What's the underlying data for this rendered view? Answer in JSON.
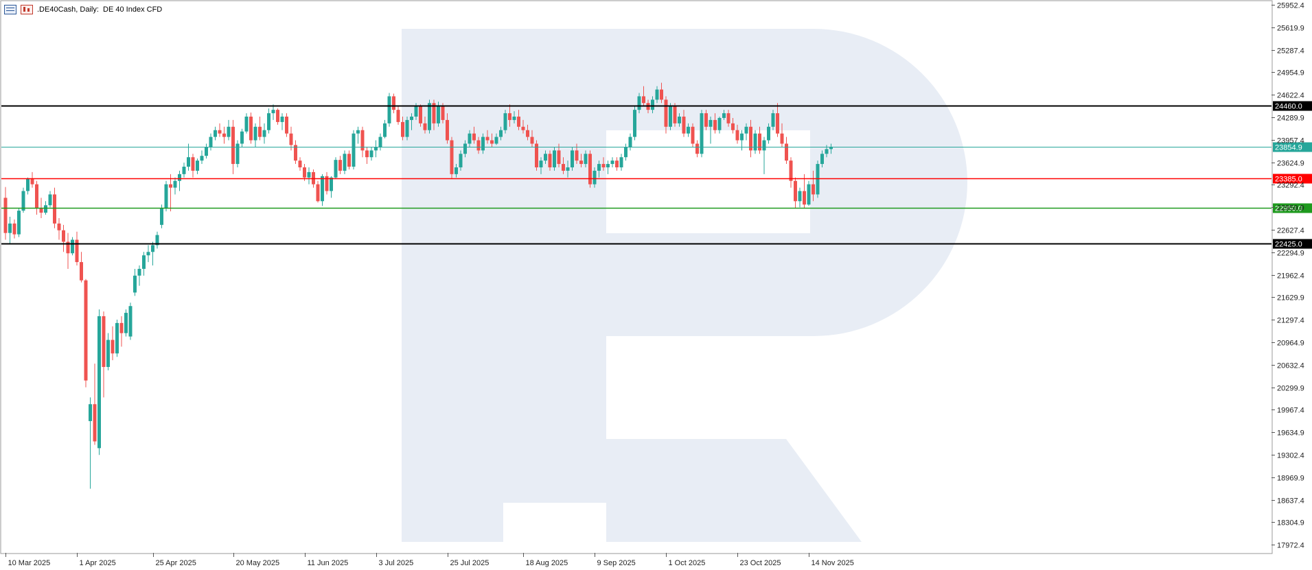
{
  "window": {
    "symbol": ".DE40Cash",
    "timeframe": "Daily:",
    "description": "DE 40 Index CFD"
  },
  "colors": {
    "bull": "#26a69a",
    "bear": "#ef5350",
    "watermark": "#e8edf5",
    "resistance_upper": "#000000",
    "resistance": "#ff0000",
    "support": "#1e9a1e",
    "support_lower": "#000000",
    "current_price": "#26a69a"
  },
  "chart_data": {
    "type": "candlestick",
    "title": "",
    "ylim": [
      17800,
      26050
    ],
    "y_ticks": [
      "25952.4",
      "25619.9",
      "25287.4",
      "24954.9",
      "24622.4",
      "24289.9",
      "23957.4",
      "23624.9",
      "23292.4",
      "22959.9",
      "22627.4",
      "22294.9",
      "21962.4",
      "21629.9",
      "21297.4",
      "20964.9",
      "20632.4",
      "20299.9",
      "19967.4",
      "19634.9",
      "19302.4",
      "18969.9",
      "18637.4",
      "18304.9",
      "17972.4"
    ],
    "x_labels": [
      {
        "label": "10 Mar 2025",
        "index": 0
      },
      {
        "label": "1 Apr 2025",
        "index": 16
      },
      {
        "label": "25 Apr 2025",
        "index": 33
      },
      {
        "label": "20 May 2025",
        "index": 51
      },
      {
        "label": "11 Jun 2025",
        "index": 67
      },
      {
        "label": "3 Jul 2025",
        "index": 83
      },
      {
        "label": "25 Jul 2025",
        "index": 99
      },
      {
        "label": "18 Aug 2025",
        "index": 116
      },
      {
        "label": "9 Sep 2025",
        "index": 132
      },
      {
        "label": "1 Oct 2025",
        "index": 148
      },
      {
        "label": "23 Oct 2025",
        "index": 164
      },
      {
        "label": "14 Nov 2025",
        "index": 180
      }
    ],
    "levels": [
      {
        "name": "upper-resistance",
        "value": 24460.0,
        "label": "24460.0",
        "color": "#000000",
        "width": 2
      },
      {
        "name": "resistance",
        "value": 23385.0,
        "label": "23385.0",
        "color": "#ff0000",
        "width": 1.5
      },
      {
        "name": "support",
        "value": 22950.0,
        "label": "22950.0",
        "color": "#1e9a1e",
        "width": 1.5
      },
      {
        "name": "lower-support",
        "value": 22425.0,
        "label": "22425.0",
        "color": "#000000",
        "width": 2
      },
      {
        "name": "current-price",
        "value": 23854.9,
        "label": "23854.9",
        "color": "#26a69a",
        "width": 1
      }
    ],
    "candles": [
      [
        23100,
        23260,
        22480,
        22580
      ],
      [
        22580,
        22820,
        22430,
        22720
      ],
      [
        22720,
        22780,
        22500,
        22560
      ],
      [
        22560,
        22950,
        22520,
        22910
      ],
      [
        22910,
        23250,
        22880,
        23200
      ],
      [
        23200,
        23400,
        23150,
        23380
      ],
      [
        23380,
        23480,
        23250,
        23300
      ],
      [
        23300,
        23350,
        22850,
        22950
      ],
      [
        22950,
        23100,
        22800,
        22880
      ],
      [
        22880,
        23050,
        22850,
        22990
      ],
      [
        22990,
        23200,
        22960,
        23150
      ],
      [
        23150,
        23250,
        22650,
        22720
      ],
      [
        22720,
        22800,
        22480,
        22620
      ],
      [
        22620,
        22700,
        22300,
        22450
      ],
      [
        22450,
        22580,
        22050,
        22280
      ],
      [
        22280,
        22520,
        22250,
        22480
      ],
      [
        22480,
        22600,
        22100,
        22150
      ],
      [
        22150,
        22300,
        21850,
        21880
      ],
      [
        21880,
        21900,
        20300,
        20400
      ],
      [
        19800,
        20150,
        18800,
        20050
      ],
      [
        20050,
        20650,
        19450,
        19500
      ],
      [
        19400,
        21450,
        19300,
        21350
      ],
      [
        21350,
        21420,
        20150,
        20600
      ],
      [
        20600,
        21100,
        20550,
        21000
      ],
      [
        21000,
        21200,
        20700,
        20800
      ],
      [
        20800,
        21300,
        20750,
        21250
      ],
      [
        21250,
        21350,
        20900,
        21100
      ],
      [
        21100,
        21450,
        21050,
        21400
      ],
      [
        21050,
        21550,
        21000,
        21500
      ],
      [
        21700,
        22050,
        21650,
        21950
      ],
      [
        21950,
        22100,
        21800,
        22050
      ],
      [
        22050,
        22300,
        21950,
        22250
      ],
      [
        22250,
        22400,
        22150,
        22300
      ],
      [
        22300,
        22450,
        22100,
        22400
      ],
      [
        22400,
        22600,
        22350,
        22550
      ],
      [
        22700,
        23000,
        22650,
        22950
      ],
      [
        22950,
        23350,
        22900,
        23300
      ],
      [
        23300,
        23450,
        22900,
        23250
      ],
      [
        23250,
        23400,
        23150,
        23350
      ],
      [
        23350,
        23500,
        23200,
        23450
      ],
      [
        23450,
        23620,
        23400,
        23560
      ],
      [
        23560,
        23900,
        23500,
        23700
      ],
      [
        23700,
        23750,
        23400,
        23500
      ],
      [
        23500,
        23680,
        23450,
        23650
      ],
      [
        23650,
        23800,
        23600,
        23720
      ],
      [
        23720,
        23900,
        23680,
        23850
      ],
      [
        23850,
        24050,
        23800,
        24000
      ],
      [
        24000,
        24150,
        23950,
        24100
      ],
      [
        24100,
        24200,
        24000,
        24050
      ],
      [
        24050,
        24150,
        23900,
        24000
      ],
      [
        24000,
        24250,
        23950,
        24150
      ],
      [
        24150,
        24250,
        23450,
        23600
      ],
      [
        23600,
        23950,
        23550,
        23900
      ],
      [
        23900,
        24120,
        23850,
        24080
      ],
      [
        24080,
        24350,
        24050,
        24300
      ],
      [
        24300,
        24360,
        23900,
        23950
      ],
      [
        23950,
        24200,
        23850,
        24150
      ],
      [
        24150,
        24300,
        23950,
        24000
      ],
      [
        24000,
        24200,
        23900,
        24100
      ],
      [
        24100,
        24420,
        24050,
        24350
      ],
      [
        24350,
        24480,
        24250,
        24400
      ],
      [
        24400,
        24420,
        24180,
        24220
      ],
      [
        24220,
        24350,
        24100,
        24300
      ],
      [
        24300,
        24350,
        24000,
        24050
      ],
      [
        24050,
        24150,
        23800,
        23880
      ],
      [
        23880,
        23950,
        23600,
        23650
      ],
      [
        23650,
        23700,
        23500,
        23550
      ],
      [
        23550,
        23600,
        23350,
        23400
      ],
      [
        23400,
        23550,
        23300,
        23480
      ],
      [
        23480,
        23520,
        23250,
        23300
      ],
      [
        23300,
        23350,
        23030,
        23050
      ],
      [
        23050,
        23450,
        22980,
        23420
      ],
      [
        23420,
        23480,
        23150,
        23200
      ],
      [
        23200,
        23420,
        23100,
        23400
      ],
      [
        23400,
        23700,
        23380,
        23660
      ],
      [
        23660,
        23720,
        23450,
        23500
      ],
      [
        23500,
        23800,
        23450,
        23750
      ],
      [
        23750,
        23800,
        23520,
        23560
      ],
      [
        23560,
        24100,
        23520,
        24050
      ],
      [
        24050,
        24150,
        23900,
        24100
      ],
      [
        24100,
        24150,
        23700,
        23800
      ],
      [
        23800,
        23850,
        23600,
        23700
      ],
      [
        23700,
        23850,
        23650,
        23800
      ],
      [
        23800,
        23950,
        23700,
        23850
      ],
      [
        23850,
        24050,
        23800,
        24000
      ],
      [
        24000,
        24250,
        23980,
        24200
      ],
      [
        24200,
        24650,
        24150,
        24600
      ],
      [
        24600,
        24640,
        24350,
        24400
      ],
      [
        24400,
        24450,
        24180,
        24220
      ],
      [
        24220,
        24300,
        23950,
        24000
      ],
      [
        24000,
        24300,
        23950,
        24250
      ],
      [
        24250,
        24350,
        24100,
        24300
      ],
      [
        24300,
        24500,
        24250,
        24450
      ],
      [
        24450,
        24480,
        24150,
        24200
      ],
      [
        24200,
        24300,
        24050,
        24100
      ],
      [
        24100,
        24550,
        24050,
        24500
      ],
      [
        24500,
        24550,
        24100,
        24200
      ],
      [
        24200,
        24520,
        24150,
        24450
      ],
      [
        24450,
        24500,
        24200,
        24250
      ],
      [
        24250,
        24350,
        23900,
        23950
      ],
      [
        23950,
        24000,
        23380,
        23450
      ],
      [
        23450,
        23600,
        23400,
        23550
      ],
      [
        23550,
        23800,
        23500,
        23750
      ],
      [
        23750,
        23950,
        23700,
        23900
      ],
      [
        23900,
        24100,
        23850,
        24050
      ],
      [
        24050,
        24150,
        23900,
        23950
      ],
      [
        23950,
        24000,
        23750,
        23800
      ],
      [
        23800,
        24050,
        23750,
        24000
      ],
      [
        24000,
        24100,
        23900,
        23950
      ],
      [
        23950,
        24050,
        23850,
        23900
      ],
      [
        23900,
        24050,
        23880,
        24000
      ],
      [
        24000,
        24150,
        23950,
        24100
      ],
      [
        24100,
        24400,
        24050,
        24350
      ],
      [
        24350,
        24480,
        24150,
        24250
      ],
      [
        24250,
        24380,
        24200,
        24300
      ],
      [
        24300,
        24400,
        24100,
        24150
      ],
      [
        24150,
        24250,
        24050,
        24100
      ],
      [
        24100,
        24180,
        23950,
        24000
      ],
      [
        24000,
        24100,
        23850,
        23900
      ],
      [
        23900,
        23950,
        23500,
        23550
      ],
      [
        23550,
        23700,
        23450,
        23650
      ],
      [
        23650,
        23800,
        23600,
        23750
      ],
      [
        23750,
        23800,
        23500,
        23550
      ],
      [
        23550,
        23850,
        23500,
        23800
      ],
      [
        23800,
        23900,
        23550,
        23600
      ],
      [
        23600,
        23700,
        23450,
        23500
      ],
      [
        23500,
        23650,
        23400,
        23550
      ],
      [
        23550,
        23850,
        23500,
        23800
      ],
      [
        23800,
        23900,
        23600,
        23650
      ],
      [
        23650,
        23750,
        23550,
        23600
      ],
      [
        23600,
        23800,
        23550,
        23750
      ],
      [
        23750,
        23800,
        23250,
        23300
      ],
      [
        23300,
        23550,
        23250,
        23500
      ],
      [
        23500,
        23650,
        23400,
        23600
      ],
      [
        23600,
        23700,
        23500,
        23550
      ],
      [
        23550,
        23650,
        23450,
        23600
      ],
      [
        23600,
        23700,
        23550,
        23650
      ],
      [
        23650,
        23700,
        23500,
        23550
      ],
      [
        23550,
        23750,
        23500,
        23700
      ],
      [
        23700,
        23900,
        23650,
        23850
      ],
      [
        23850,
        24050,
        23800,
        24000
      ],
      [
        24000,
        24450,
        23950,
        24400
      ],
      [
        24400,
        24650,
        24350,
        24600
      ],
      [
        24600,
        24750,
        24450,
        24500
      ],
      [
        24500,
        24550,
        24350,
        24400
      ],
      [
        24400,
        24600,
        24350,
        24550
      ],
      [
        24550,
        24750,
        24500,
        24700
      ],
      [
        24700,
        24800,
        24500,
        24550
      ],
      [
        24550,
        24600,
        24050,
        24150
      ],
      [
        24150,
        24500,
        24100,
        24450
      ],
      [
        24450,
        24500,
        24150,
        24200
      ],
      [
        24200,
        24350,
        24150,
        24300
      ],
      [
        24300,
        24400,
        24000,
        24050
      ],
      [
        24050,
        24200,
        24000,
        24150
      ],
      [
        24150,
        24200,
        23850,
        23900
      ],
      [
        23900,
        23950,
        23700,
        23750
      ],
      [
        23750,
        24400,
        23700,
        24350
      ],
      [
        24350,
        24400,
        24100,
        24150
      ],
      [
        24150,
        24300,
        23900,
        24250
      ],
      [
        24250,
        24350,
        24050,
        24100
      ],
      [
        24100,
        24300,
        24050,
        24280
      ],
      [
        24280,
        24400,
        24250,
        24350
      ],
      [
        24350,
        24400,
        24150,
        24200
      ],
      [
        24200,
        24280,
        24050,
        24100
      ],
      [
        24100,
        24180,
        23900,
        23950
      ],
      [
        23950,
        24100,
        23800,
        24050
      ],
      [
        24050,
        24200,
        23950,
        24150
      ],
      [
        24150,
        24250,
        23700,
        23800
      ],
      [
        23800,
        24100,
        23750,
        24050
      ],
      [
        24050,
        24150,
        23750,
        23800
      ],
      [
        23800,
        24000,
        23450,
        23950
      ],
      [
        23950,
        24200,
        23900,
        24150
      ],
      [
        24150,
        24400,
        24100,
        24350
      ],
      [
        24350,
        24500,
        24000,
        24050
      ],
      [
        24050,
        24200,
        23850,
        23900
      ],
      [
        23900,
        24000,
        23600,
        23650
      ],
      [
        23650,
        23700,
        23250,
        23350
      ],
      [
        23350,
        23400,
        22950,
        23050
      ],
      [
        23050,
        23250,
        22960,
        23200
      ],
      [
        23200,
        23450,
        22950,
        23000
      ],
      [
        23000,
        23350,
        22980,
        23300
      ],
      [
        23300,
        23500,
        23050,
        23150
      ],
      [
        23150,
        23650,
        23100,
        23600
      ],
      [
        23600,
        23800,
        23550,
        23750
      ],
      [
        23750,
        23880,
        23700,
        23820
      ],
      [
        23820,
        23900,
        23750,
        23855
      ]
    ]
  }
}
